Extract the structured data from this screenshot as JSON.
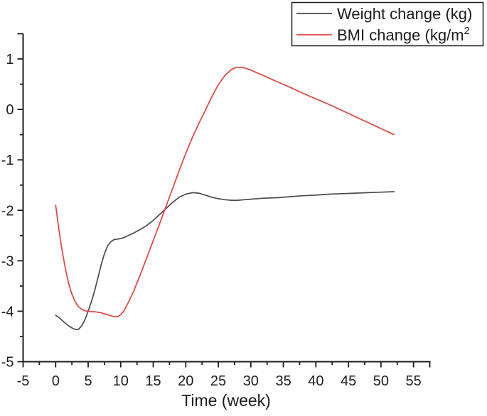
{
  "figure": {
    "background": "#ffffff",
    "axis_color": "#1c1c1c",
    "text_color": "#1c1c1c"
  },
  "chart_data": {
    "type": "line",
    "title": "",
    "xlabel": "Time (week)",
    "ylabel": "",
    "xlim": [
      -5,
      57.5
    ],
    "ylim": [
      -5,
      1.5
    ],
    "grid": false,
    "x_major_ticks": [
      -5,
      0,
      5,
      10,
      15,
      20,
      25,
      30,
      35,
      40,
      45,
      50,
      55
    ],
    "x_tick_labels": [
      "-5",
      "0",
      "5",
      "10",
      "15",
      "20",
      "25",
      "30",
      "35",
      "40",
      "45",
      "50",
      "55"
    ],
    "x_minor_ticks": [
      -2.5,
      2.5,
      7.5,
      12.5,
      17.5,
      22.5,
      27.5,
      32.5,
      37.5,
      42.5,
      47.5,
      52.5,
      57.5
    ],
    "y_major_ticks": [
      -5,
      -4,
      -3,
      -2,
      -1,
      0,
      1
    ],
    "y_tick_labels": [
      "-5",
      "-4",
      "-3",
      "-2",
      "-1",
      "0",
      "1"
    ],
    "y_minor_ticks": [
      -4.5,
      -3.5,
      -2.5,
      -1.5,
      -0.5,
      0.5,
      1.5
    ],
    "legend": {
      "position": "top-right",
      "items": [
        {
          "label": "Weight change (kg)",
          "label_base": "Weight change (kg)",
          "label_sup": "",
          "color": "#4a4a4a"
        },
        {
          "label": "BMI change (kg/m2",
          "label_base": "BMI change (kg/m",
          "label_sup": "2",
          "color": "#e4423c"
        }
      ]
    },
    "series": [
      {
        "name": "Weight change (kg)",
        "color": "#4a4a4a",
        "points": [
          [
            0,
            -4.08
          ],
          [
            0.5,
            -4.12
          ],
          [
            1,
            -4.18
          ],
          [
            1.5,
            -4.24
          ],
          [
            2,
            -4.29
          ],
          [
            2.5,
            -4.33
          ],
          [
            3,
            -4.36
          ],
          [
            3.5,
            -4.36
          ],
          [
            4,
            -4.29
          ],
          [
            4.5,
            -4.17
          ],
          [
            5,
            -4.0
          ],
          [
            5.5,
            -3.81
          ],
          [
            6,
            -3.59
          ],
          [
            6.5,
            -3.34
          ],
          [
            7,
            -3.08
          ],
          [
            7.5,
            -2.86
          ],
          [
            8,
            -2.7
          ],
          [
            8.5,
            -2.62
          ],
          [
            9,
            -2.58
          ],
          [
            9.5,
            -2.57
          ],
          [
            10,
            -2.56
          ],
          [
            10.5,
            -2.54
          ],
          [
            11,
            -2.51
          ],
          [
            12,
            -2.45
          ],
          [
            13,
            -2.38
          ],
          [
            14,
            -2.3
          ],
          [
            15,
            -2.2
          ],
          [
            16,
            -2.08
          ],
          [
            17,
            -1.96
          ],
          [
            18,
            -1.84
          ],
          [
            19,
            -1.74
          ],
          [
            20,
            -1.68
          ],
          [
            21,
            -1.65
          ],
          [
            22,
            -1.66
          ],
          [
            23,
            -1.7
          ],
          [
            24,
            -1.74
          ],
          [
            25,
            -1.77
          ],
          [
            26,
            -1.79
          ],
          [
            27,
            -1.8
          ],
          [
            28,
            -1.8
          ],
          [
            29,
            -1.79
          ],
          [
            30,
            -1.78
          ],
          [
            32,
            -1.76
          ],
          [
            34,
            -1.75
          ],
          [
            36,
            -1.73
          ],
          [
            38,
            -1.71
          ],
          [
            40,
            -1.7
          ],
          [
            42,
            -1.68
          ],
          [
            44,
            -1.67
          ],
          [
            46,
            -1.66
          ],
          [
            48,
            -1.65
          ],
          [
            50,
            -1.64
          ],
          [
            52,
            -1.63
          ]
        ]
      },
      {
        "name": "BMI change (kg/m2)",
        "color": "#e4423c",
        "points": [
          [
            0,
            -1.9
          ],
          [
            0.5,
            -2.38
          ],
          [
            1,
            -2.8
          ],
          [
            1.5,
            -3.16
          ],
          [
            2,
            -3.45
          ],
          [
            2.5,
            -3.66
          ],
          [
            3,
            -3.81
          ],
          [
            3.5,
            -3.91
          ],
          [
            4,
            -3.96
          ],
          [
            4.5,
            -3.99
          ],
          [
            5,
            -4.0
          ],
          [
            5.5,
            -4.01
          ],
          [
            6,
            -4.01
          ],
          [
            6.5,
            -4.02
          ],
          [
            7,
            -4.03
          ],
          [
            7.5,
            -4.05
          ],
          [
            8,
            -4.07
          ],
          [
            8.5,
            -4.09
          ],
          [
            9,
            -4.11
          ],
          [
            9.5,
            -4.11
          ],
          [
            10,
            -4.07
          ],
          [
            10.5,
            -3.99
          ],
          [
            11,
            -3.87
          ],
          [
            11.5,
            -3.74
          ],
          [
            12,
            -3.6
          ],
          [
            13,
            -3.28
          ],
          [
            14,
            -2.94
          ],
          [
            15,
            -2.6
          ],
          [
            16,
            -2.26
          ],
          [
            17,
            -1.91
          ],
          [
            18,
            -1.56
          ],
          [
            19,
            -1.21
          ],
          [
            20,
            -0.87
          ],
          [
            21,
            -0.56
          ],
          [
            22,
            -0.28
          ],
          [
            23,
            -0.02
          ],
          [
            24,
            0.25
          ],
          [
            25,
            0.49
          ],
          [
            26,
            0.67
          ],
          [
            27,
            0.79
          ],
          [
            27.5,
            0.82
          ],
          [
            28,
            0.835
          ],
          [
            28.5,
            0.835
          ],
          [
            29,
            0.825
          ],
          [
            30,
            0.78
          ],
          [
            31,
            0.72
          ],
          [
            32,
            0.67
          ],
          [
            34,
            0.55
          ],
          [
            36,
            0.44
          ],
          [
            38,
            0.32
          ],
          [
            40,
            0.21
          ],
          [
            42,
            0.1
          ],
          [
            44,
            -0.02
          ],
          [
            46,
            -0.14
          ],
          [
            48,
            -0.26
          ],
          [
            50,
            -0.38
          ],
          [
            52,
            -0.5
          ]
        ]
      }
    ]
  }
}
